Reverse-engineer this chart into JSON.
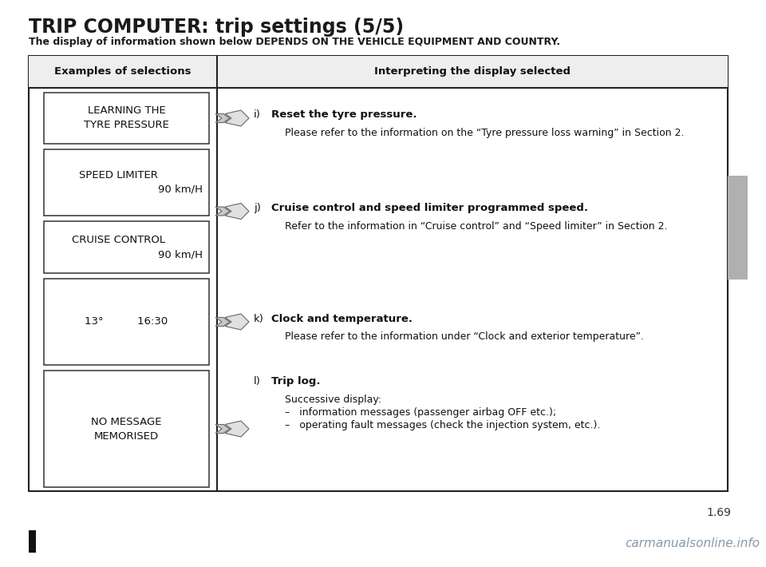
{
  "title": "TRIP COMPUTER: trip settings (5/5)",
  "subtitle": "The display of information shown below DEPENDS ON THE VEHICLE EQUIPMENT AND COUNTRY.",
  "col1_header": "Examples of selections",
  "col2_header": "Interpreting the display selected",
  "bg_color": "#ffffff",
  "left_boxes": [
    {
      "line1": "LEARNING THE",
      "line2": "TYRE PRESSURE",
      "align2": "center"
    },
    {
      "line1": "SPEED LIMITER",
      "line2": "90 km/H",
      "align2": "right"
    },
    {
      "line1": "CRUISE CONTROL",
      "line2": "90 km/H",
      "align2": "right"
    },
    {
      "line1": "13°          16:30",
      "line2": "",
      "align2": "center"
    },
    {
      "line1": "NO MESSAGE",
      "line2": "MEMORISED",
      "align2": "center"
    }
  ],
  "right_entries": [
    {
      "label": "i)",
      "bold_text": "Reset the tyre pressure.",
      "normal_text": "Please refer to the information on the “Tyre pressure loss warning” in Section 2."
    },
    {
      "label": "j)",
      "bold_text": "Cruise control and speed limiter programmed speed.",
      "normal_text": "Refer to the information in “Cruise control” and “Speed limiter” in Section 2."
    },
    {
      "label": "k)",
      "bold_text": "Clock and temperature.",
      "normal_text": "Please refer to the information under “Clock and exterior temperature”."
    },
    {
      "label": "l)",
      "bold_text": "Trip log.",
      "normal_text_lines": [
        "Successive display:",
        "–   information messages (passenger airbag OFF etc.);",
        "–   operating fault messages (check the injection system, etc.)."
      ]
    }
  ],
  "page_number": "1.69",
  "watermark": "carmanualsonline.info",
  "sidebar_color": "#b0b0b0"
}
